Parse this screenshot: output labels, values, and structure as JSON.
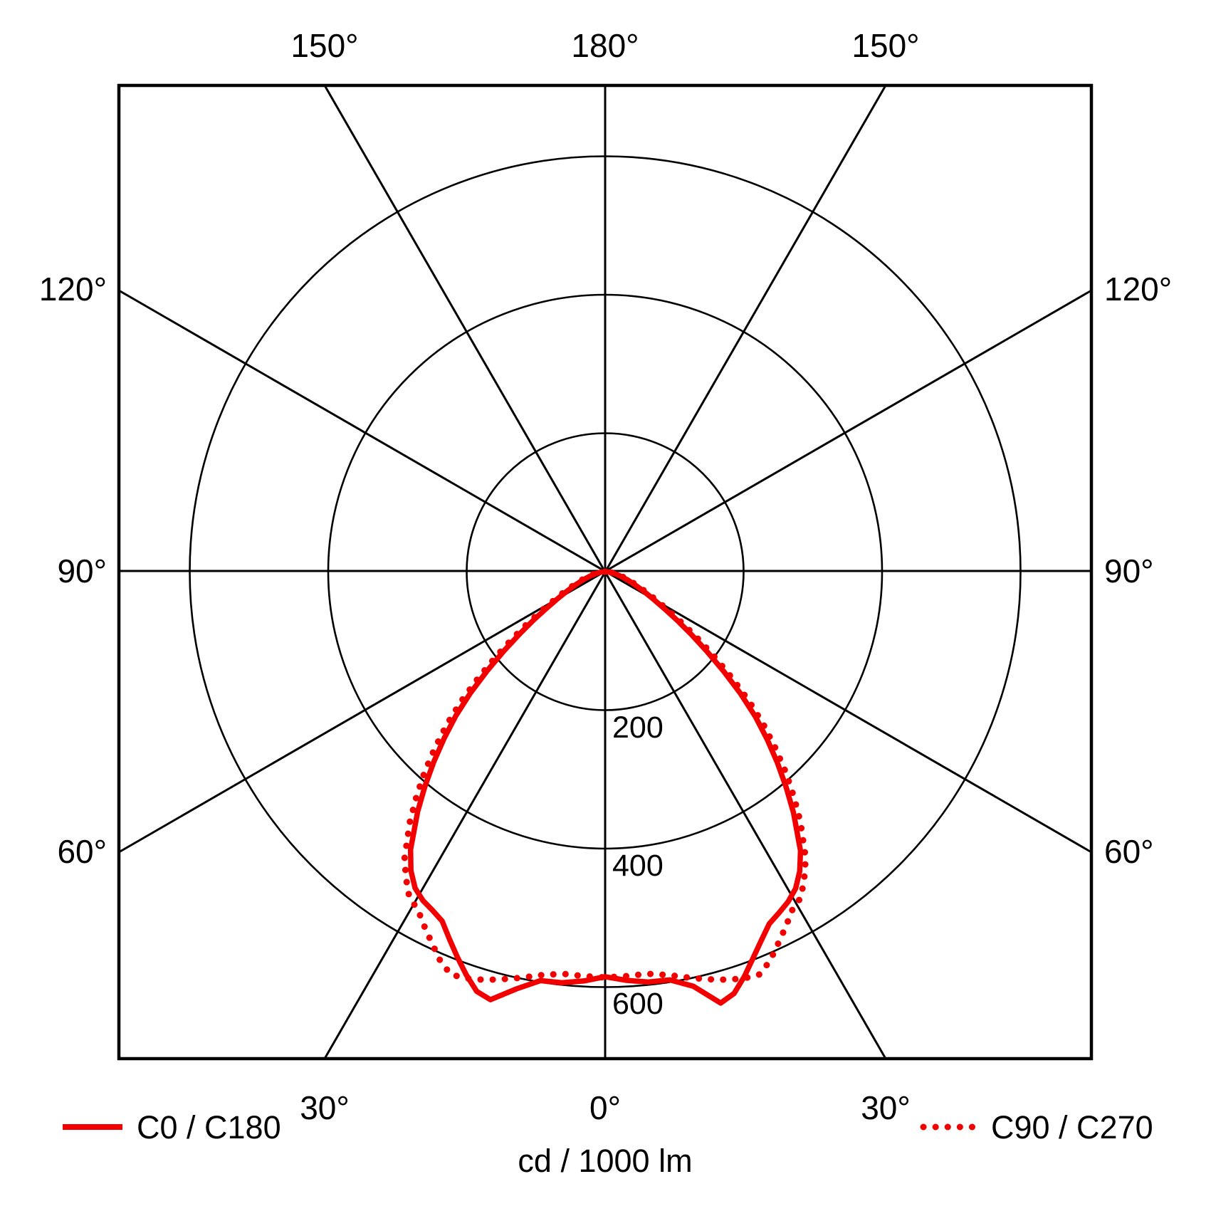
{
  "chart": {
    "caption": "cd / 1000 lm",
    "angle_labels": {
      "top": [
        "150°",
        "180°",
        "150°"
      ],
      "bottom": [
        "30°",
        "0°",
        "30°"
      ],
      "left": [
        "120°",
        "90°",
        "60°"
      ],
      "right": [
        "120°",
        "90°",
        "60°"
      ]
    },
    "radius_labels": [
      "200",
      "400",
      "600"
    ],
    "legend": [
      {
        "label": "C0 / C180",
        "style": "solid"
      },
      {
        "label": "C90 / C270",
        "style": "dotted"
      }
    ],
    "colors": {
      "curve": "#f20000",
      "grid": "#000000",
      "background": "#ffffff"
    }
  },
  "chart_data": {
    "type": "line",
    "subtype": "polar-photometric",
    "units": "cd / 1000 lm",
    "caption": "cd / 1000 lm",
    "radius_ticks": [
      200,
      400,
      600
    ],
    "radius_max_visible": 700,
    "angle_ticks_deg": [
      0,
      30,
      60,
      90,
      120,
      150,
      180
    ],
    "grid": true,
    "legend_position": "bottom",
    "series": [
      {
        "name": "C0 / C180",
        "style": "solid",
        "color": "#f20000",
        "points_gamma_intensity": [
          [
            90,
            0
          ],
          [
            86,
            3
          ],
          [
            82,
            8
          ],
          [
            78,
            14
          ],
          [
            74,
            22
          ],
          [
            70,
            33
          ],
          [
            66,
            47
          ],
          [
            63,
            62
          ],
          [
            60,
            82
          ],
          [
            58,
            100
          ],
          [
            56,
            124
          ],
          [
            54,
            152
          ],
          [
            52,
            185
          ],
          [
            50,
            222
          ],
          [
            48,
            262
          ],
          [
            46,
            300
          ],
          [
            44,
            335
          ],
          [
            42,
            370
          ],
          [
            40,
            405
          ],
          [
            38,
            440
          ],
          [
            35,
            490
          ],
          [
            33,
            515
          ],
          [
            31,
            533
          ],
          [
            29,
            543
          ],
          [
            27,
            549
          ],
          [
            25,
            557
          ],
          [
            23,
            576
          ],
          [
            21,
            596
          ],
          [
            19,
            616
          ],
          [
            17,
            634
          ],
          [
            15,
            640
          ],
          [
            12,
            616
          ],
          [
            9,
            598
          ],
          [
            6,
            597
          ],
          [
            3,
            592
          ],
          [
            0,
            585
          ],
          [
            -3,
            591
          ],
          [
            -6,
            596
          ],
          [
            -9,
            597
          ],
          [
            -12,
            612
          ],
          [
            -15,
            645
          ],
          [
            -17,
            637
          ],
          [
            -19,
            618
          ],
          [
            -21,
            597
          ],
          [
            -23,
            578
          ],
          [
            -25,
            561
          ],
          [
            -27,
            553
          ],
          [
            -29,
            545
          ],
          [
            -31,
            534
          ],
          [
            -33,
            516
          ],
          [
            -35,
            492
          ],
          [
            -38,
            442
          ],
          [
            -40,
            407
          ],
          [
            -42,
            372
          ],
          [
            -44,
            337
          ],
          [
            -46,
            302
          ],
          [
            -48,
            263
          ],
          [
            -50,
            223
          ],
          [
            -52,
            186
          ],
          [
            -54,
            153
          ],
          [
            -56,
            125
          ],
          [
            -58,
            101
          ],
          [
            -60,
            83
          ],
          [
            -63,
            63
          ],
          [
            -66,
            48
          ],
          [
            -70,
            34
          ],
          [
            -74,
            23
          ],
          [
            -78,
            15
          ],
          [
            -82,
            8
          ],
          [
            -86,
            3
          ],
          [
            -90,
            0
          ]
        ]
      },
      {
        "name": "C90 / C270",
        "style": "dotted",
        "color": "#f20000",
        "points_gamma_intensity": [
          [
            90,
            0
          ],
          [
            86,
            4
          ],
          [
            82,
            10
          ],
          [
            78,
            17
          ],
          [
            74,
            26
          ],
          [
            70,
            38
          ],
          [
            66,
            53
          ],
          [
            63,
            70
          ],
          [
            60,
            92
          ],
          [
            58,
            112
          ],
          [
            56,
            138
          ],
          [
            54,
            168
          ],
          [
            52,
            202
          ],
          [
            50,
            240
          ],
          [
            48,
            280
          ],
          [
            46,
            318
          ],
          [
            44,
            354
          ],
          [
            42,
            390
          ],
          [
            40,
            424
          ],
          [
            38,
            458
          ],
          [
            35,
            505
          ],
          [
            33,
            528
          ],
          [
            31,
            549
          ],
          [
            29,
            558
          ],
          [
            27,
            575
          ],
          [
            25,
            592
          ],
          [
            23,
            610
          ],
          [
            21,
            623
          ],
          [
            19,
            621
          ],
          [
            17,
            616
          ],
          [
            15,
            610
          ],
          [
            12,
            600
          ],
          [
            9,
            590
          ],
          [
            6,
            584
          ],
          [
            3,
            585
          ],
          [
            0,
            586
          ],
          [
            -3,
            585
          ],
          [
            -6,
            584
          ],
          [
            -9,
            590
          ],
          [
            -12,
            600
          ],
          [
            -15,
            610
          ],
          [
            -17,
            616
          ],
          [
            -19,
            621
          ],
          [
            -21,
            623
          ],
          [
            -23,
            610
          ],
          [
            -25,
            592
          ],
          [
            -27,
            575
          ],
          [
            -29,
            558
          ],
          [
            -31,
            549
          ],
          [
            -33,
            528
          ],
          [
            -35,
            505
          ],
          [
            -38,
            458
          ],
          [
            -40,
            424
          ],
          [
            -42,
            390
          ],
          [
            -44,
            354
          ],
          [
            -46,
            318
          ],
          [
            -48,
            280
          ],
          [
            -50,
            240
          ],
          [
            -52,
            202
          ],
          [
            -54,
            168
          ],
          [
            -56,
            138
          ],
          [
            -58,
            112
          ],
          [
            -60,
            92
          ],
          [
            -63,
            70
          ],
          [
            -66,
            53
          ],
          [
            -70,
            38
          ],
          [
            -74,
            26
          ],
          [
            -78,
            17
          ],
          [
            -82,
            10
          ],
          [
            -86,
            4
          ],
          [
            -90,
            0
          ]
        ]
      }
    ]
  }
}
